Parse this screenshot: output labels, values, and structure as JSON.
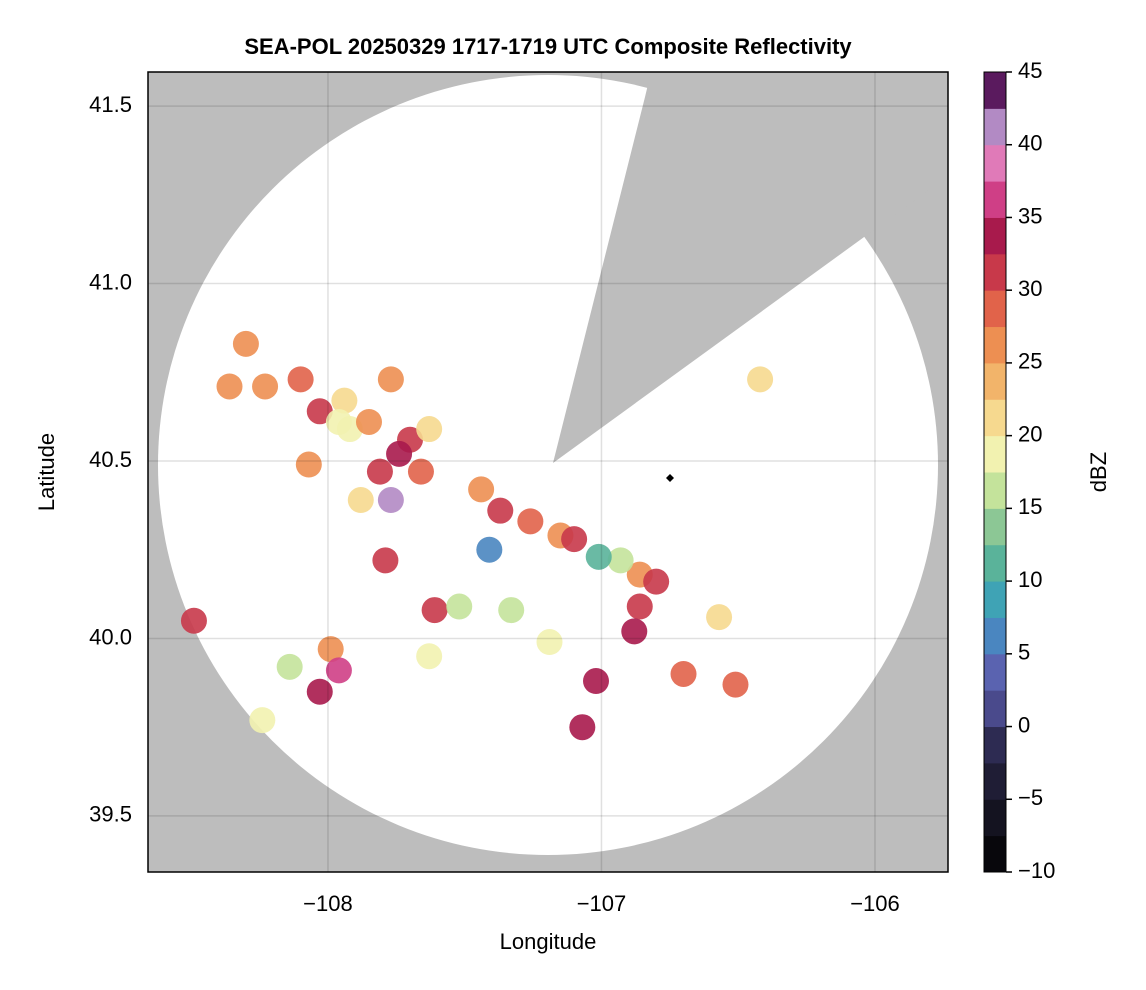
{
  "chart_data": {
    "type": "scatter",
    "title": "SEA-POL 20250329 1717-1719 UTC Composite Reflectivity",
    "x_label": "Longitude",
    "y_label": "Latitude",
    "colorbar_label": "dBZ",
    "xlim": [
      -108.658,
      -105.733
    ],
    "ylim": [
      39.342,
      41.596
    ],
    "xticks": [
      {
        "value": -108,
        "label": "−108"
      },
      {
        "value": -107,
        "label": "−107"
      },
      {
        "value": -106,
        "label": "−106"
      }
    ],
    "yticks": [
      39.5,
      {
        "value": 40,
        "label": "40.0"
      },
      40.5,
      {
        "value": 41,
        "label": "41.0"
      },
      41.5
    ],
    "grid": true,
    "clim": [
      -10,
      45
    ],
    "cticks": [
      {
        "value": -10,
        "label": "−10"
      },
      {
        "value": -5,
        "label": "−5"
      },
      0,
      5,
      10,
      15,
      20,
      25,
      30,
      35,
      40,
      45
    ],
    "colormap": [
      "#08070c",
      "#141320",
      "#1f1d35",
      "#2d2b52",
      "#4a4a8c",
      "#5a63b0",
      "#4a86c0",
      "#3fa3b5",
      "#5ab39a",
      "#8cc795",
      "#c4e39b",
      "#f2f2b0",
      "#f6d98f",
      "#f2b46a",
      "#ed8f52",
      "#e1634a",
      "#c8394a",
      "#a81a4c",
      "#cf3f86",
      "#e07ab8",
      "#b28ac4",
      "#5a1a5e"
    ],
    "x": [
      -108.3,
      -108.36,
      -108.23,
      -108.1,
      -108.03,
      -107.94,
      -107.92,
      -107.96,
      -107.85,
      -107.77,
      -107.7,
      -107.66,
      -107.77,
      -108.07,
      -107.88,
      -107.81,
      -107.74,
      -107.63,
      -107.44,
      -107.37,
      -107.26,
      -107.15,
      -107.1,
      -107.41,
      -106.86,
      -106.8,
      -106.93,
      -106.86,
      -106.88,
      -107.01,
      -107.79,
      -107.61,
      -107.99,
      -107.96,
      -108.03,
      -107.33,
      -107.19,
      -107.02,
      -107.07,
      -106.51,
      -106.7,
      -106.57,
      -106.42,
      -108.49,
      -107.52,
      -107.63,
      -108.14,
      -108.24
    ],
    "y": [
      40.83,
      40.71,
      40.71,
      40.73,
      40.64,
      40.67,
      40.59,
      40.61,
      40.61,
      40.73,
      40.56,
      40.47,
      40.39,
      40.49,
      40.39,
      40.47,
      40.52,
      40.59,
      40.42,
      40.36,
      40.33,
      40.29,
      40.28,
      40.25,
      40.18,
      40.16,
      40.22,
      40.09,
      40.02,
      40.23,
      40.22,
      40.08,
      39.97,
      39.91,
      39.85,
      40.08,
      39.99,
      39.88,
      39.75,
      39.87,
      39.9,
      40.06,
      40.73,
      40.05,
      40.09,
      39.95,
      39.92,
      39.77
    ],
    "values": [
      25,
      25,
      25,
      28,
      30,
      22,
      18,
      18,
      25,
      25,
      30,
      28,
      40,
      27,
      20,
      30,
      33,
      20,
      25,
      30,
      28,
      25,
      30,
      5,
      25,
      30,
      15,
      30,
      33,
      12,
      32,
      30,
      25,
      35,
      33,
      15,
      18,
      33,
      33,
      28,
      28,
      20,
      22,
      30,
      15,
      18,
      15,
      18
    ]
  }
}
